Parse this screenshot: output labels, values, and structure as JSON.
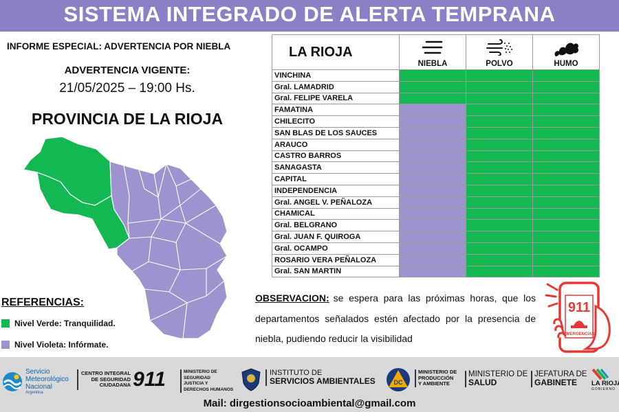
{
  "header": {
    "title": "SISTEMA INTEGRADO DE ALERTA TEMPRANA"
  },
  "report": {
    "subtitle": "INFORME ESPECIAL: ADVERTENCIA POR NIEBLA",
    "advisory_label": "ADVERTENCIA VIGENTE:",
    "advisory_datetime": "21/05/2025 – 19:00 Hs.",
    "province_title": "PROVINCIA DE LA RIOJA"
  },
  "colors": {
    "verde": "#14b853",
    "violeta": "#9e93cf",
    "banner": "#8b7fc5"
  },
  "references": {
    "title": "REFERENCIAS:",
    "items": [
      {
        "label": "Nivel Verde: Tranquilidad.",
        "color": "#14b853"
      },
      {
        "label": "Nivel Violeta: Infórmate.",
        "color": "#9e93cf"
      }
    ]
  },
  "table": {
    "region": "LA RIOJA",
    "hazards": [
      {
        "label": "NIEBLA",
        "icon": "fog-icon"
      },
      {
        "label": "POLVO",
        "icon": "dust-wind-icon"
      },
      {
        "label": "HUMO",
        "icon": "smoke-icon"
      }
    ],
    "rows": [
      {
        "name": "VINCHINA",
        "levels": [
          "verde",
          "verde",
          "verde"
        ]
      },
      {
        "name": "Gral. LAMADRID",
        "levels": [
          "verde",
          "verde",
          "verde"
        ]
      },
      {
        "name": "Gral. FELIPE VARELA",
        "levels": [
          "verde",
          "verde",
          "verde"
        ]
      },
      {
        "name": "FAMATINA",
        "levels": [
          "violeta",
          "verde",
          "verde"
        ]
      },
      {
        "name": "CHILECITO",
        "levels": [
          "violeta",
          "verde",
          "verde"
        ]
      },
      {
        "name": "SAN BLAS DE LOS SAUCES",
        "levels": [
          "violeta",
          "verde",
          "verde"
        ]
      },
      {
        "name": "ARAUCO",
        "levels": [
          "violeta",
          "verde",
          "verde"
        ]
      },
      {
        "name": "CASTRO BARROS",
        "levels": [
          "violeta",
          "verde",
          "verde"
        ]
      },
      {
        "name": "SANAGASTA",
        "levels": [
          "violeta",
          "verde",
          "verde"
        ]
      },
      {
        "name": "CAPITAL",
        "levels": [
          "violeta",
          "verde",
          "verde"
        ]
      },
      {
        "name": "INDEPENDENCIA",
        "levels": [
          "violeta",
          "verde",
          "verde"
        ]
      },
      {
        "name": "Gral. ANGEL V. PEÑALOZA",
        "levels": [
          "violeta",
          "verde",
          "verde"
        ]
      },
      {
        "name": "CHAMICAL",
        "levels": [
          "violeta",
          "verde",
          "verde"
        ]
      },
      {
        "name": "Gral. BELGRANO",
        "levels": [
          "violeta",
          "verde",
          "verde"
        ]
      },
      {
        "name": "Gral. JUAN F. QUIROGA",
        "levels": [
          "violeta",
          "verde",
          "verde"
        ]
      },
      {
        "name": "Gral. OCAMPO",
        "levels": [
          "violeta",
          "verde",
          "verde"
        ]
      },
      {
        "name": "ROSARIO VERA PEÑALOZA",
        "levels": [
          "violeta",
          "verde",
          "verde"
        ]
      },
      {
        "name": "Gral. SAN MARTIN",
        "levels": [
          "violeta",
          "verde",
          "verde"
        ]
      }
    ]
  },
  "observation": {
    "heading": "OBSERVACION:",
    "text": "se espera para las próximas horas, que los departamentos señalados estén afectado por la presencia de niebla, pudiendo reducir la visibilidad"
  },
  "emergency_badge": {
    "number": "911",
    "label": "EMERGENCIAS"
  },
  "footer": {
    "smn": [
      "Servicio",
      "Meteorológico",
      "Nacional",
      "Argentina"
    ],
    "centro": [
      "CENTRO INTEGRAL",
      "DE SEGURIDAD",
      "CIUDADANA"
    ],
    "centro_number": "911",
    "min_seguridad": [
      "MINISTERIO DE",
      "SEGURIDAD",
      "JUSTICIA Y",
      "DERECHOS HUMANOS"
    ],
    "instituto": [
      "INSTITUTO DE",
      "SERVICIOS AMBIENTALES"
    ],
    "dc_badge": "DC",
    "min_produccion": [
      "MINISTERIO DE",
      "PRODUCCIÓN",
      "Y AMBIENTE"
    ],
    "min_salud": [
      "MINISTERIO DE",
      "SALUD"
    ],
    "jefatura": [
      "JEFATURA DE",
      "GABINETE"
    ],
    "la_rioja": [
      "LA RIOJA",
      "GOBIERNO"
    ],
    "mail": "Mail: dirgestionsocioambiental@gmail.com"
  }
}
